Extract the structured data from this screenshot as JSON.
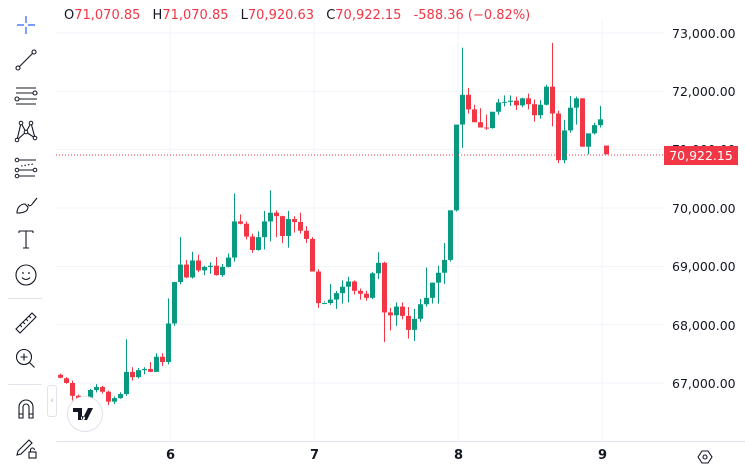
{
  "legend": {
    "open_label": "O",
    "open": "71,070.85",
    "high_label": "H",
    "high": "71,070.85",
    "low_label": "L",
    "low": "70,920.63",
    "close_label": "C",
    "close": "70,922.15",
    "change": "-588.36 (−0.82%)"
  },
  "toolbar": {
    "items": [
      {
        "name": "crosshair-tool",
        "icon": "crosshair-icon"
      },
      {
        "name": "trend-line-tool",
        "icon": "trend-line-icon"
      },
      {
        "name": "horizontal-lines-tool",
        "icon": "horizontal-lines-icon"
      },
      {
        "name": "pattern-tool",
        "icon": "xabcd-pattern-icon"
      },
      {
        "name": "fib-tool",
        "icon": "fib-retracement-icon"
      },
      {
        "name": "brush-tool",
        "icon": "brush-icon"
      },
      {
        "name": "text-tool",
        "icon": "text-icon"
      },
      {
        "name": "emoji-tool",
        "icon": "smiley-icon"
      },
      {
        "name": "measure-tool",
        "icon": "ruler-icon"
      },
      {
        "name": "zoom-tool",
        "icon": "zoom-in-icon"
      },
      {
        "name": "magnet-tool",
        "icon": "magnet-icon"
      },
      {
        "name": "lock-drawings-tool",
        "icon": "pencil-lock-icon"
      }
    ]
  },
  "price_axis": {
    "labels": [
      "73,000.00",
      "72,000.00",
      "71,000.00",
      "70,000.00",
      "69,000.00",
      "68,000.00",
      "67,000.00"
    ],
    "last_price": "70,922.15"
  },
  "time_axis": {
    "labels": [
      "6",
      "7",
      "8",
      "9"
    ]
  },
  "colors": {
    "up": "#089981",
    "down": "#f23645",
    "grid": "#f0f3fa",
    "axis_text": "#131722"
  },
  "chart_data": {
    "type": "candlestick",
    "title": "",
    "xlabel": "",
    "ylabel": "",
    "ylim": [
      66000,
      73200
    ],
    "x_ticks": [
      "6",
      "7",
      "8",
      "9"
    ],
    "y_ticks": [
      67000,
      68000,
      69000,
      70000,
      71000,
      72000,
      73000
    ],
    "grid": true,
    "last_price": 70922.15,
    "ohlc_last": {
      "open": 71070.85,
      "high": 71070.85,
      "low": 70920.63,
      "close": 70922.15
    },
    "candles_ohlc": [
      [
        67140,
        67160,
        67080,
        67090
      ],
      [
        67080,
        67100,
        66990,
        67000
      ],
      [
        67000,
        67040,
        66700,
        66780
      ],
      [
        66780,
        66800,
        66620,
        66680
      ],
      [
        66680,
        66760,
        66640,
        66740
      ],
      [
        66740,
        66900,
        66740,
        66880
      ],
      [
        66880,
        66980,
        66840,
        66930
      ],
      [
        66930,
        66950,
        66820,
        66850
      ],
      [
        66850,
        66870,
        66620,
        66680
      ],
      [
        66680,
        66770,
        66640,
        66740
      ],
      [
        66740,
        66840,
        66730,
        66810
      ],
      [
        66810,
        67750,
        66780,
        67190
      ],
      [
        67190,
        67270,
        67040,
        67100
      ],
      [
        67100,
        67260,
        67080,
        67220
      ],
      [
        67220,
        67270,
        67150,
        67240
      ],
      [
        67240,
        67360,
        67190,
        67190
      ],
      [
        67190,
        67510,
        67190,
        67450
      ],
      [
        67450,
        67510,
        67290,
        67360
      ],
      [
        67360,
        68450,
        67320,
        68020
      ],
      [
        68020,
        68730,
        67980,
        68730
      ],
      [
        68730,
        69500,
        68690,
        69030
      ],
      [
        69030,
        69110,
        68800,
        68810
      ],
      [
        68810,
        69250,
        68790,
        69100
      ],
      [
        69100,
        69200,
        68900,
        68930
      ],
      [
        68930,
        69010,
        68850,
        68990
      ],
      [
        68990,
        69070,
        68870,
        69010
      ],
      [
        69010,
        69160,
        68840,
        68850
      ],
      [
        68850,
        69040,
        68820,
        68990
      ],
      [
        68990,
        69220,
        68980,
        69150
      ],
      [
        69150,
        70250,
        69080,
        69770
      ],
      [
        69770,
        69890,
        69720,
        69730
      ],
      [
        69730,
        69770,
        69460,
        69510
      ],
      [
        69510,
        69560,
        69230,
        69280
      ],
      [
        69280,
        69600,
        69270,
        69500
      ],
      [
        69500,
        69950,
        69290,
        69770
      ],
      [
        69770,
        70300,
        69430,
        69920
      ],
      [
        69920,
        69960,
        69500,
        69860
      ],
      [
        69860,
        69870,
        69400,
        69520
      ],
      [
        69520,
        69950,
        69320,
        69810
      ],
      [
        69810,
        69860,
        69580,
        69760
      ],
      [
        69760,
        69920,
        69560,
        69610
      ],
      [
        69610,
        69690,
        69400,
        69470
      ],
      [
        69470,
        69500,
        68940,
        68910
      ],
      [
        68910,
        68950,
        68290,
        68370
      ],
      [
        68370,
        68400,
        68380,
        68370
      ],
      [
        68370,
        68700,
        68340,
        68430
      ],
      [
        68430,
        68580,
        68270,
        68540
      ],
      [
        68540,
        68760,
        68360,
        68650
      ],
      [
        68650,
        68820,
        68380,
        68740
      ],
      [
        68740,
        68760,
        68520,
        68580
      ],
      [
        68580,
        68620,
        68430,
        68530
      ],
      [
        68530,
        68580,
        68410,
        68460
      ],
      [
        68460,
        68900,
        68440,
        68880
      ],
      [
        68880,
        69240,
        68780,
        69060
      ],
      [
        69060,
        69080,
        67700,
        68210
      ],
      [
        68210,
        68290,
        67900,
        68160
      ],
      [
        68160,
        68380,
        67980,
        68310
      ],
      [
        68310,
        68380,
        68090,
        68150
      ],
      [
        68150,
        68300,
        67760,
        67910
      ],
      [
        67910,
        68270,
        67720,
        68100
      ],
      [
        68100,
        68440,
        68050,
        68350
      ],
      [
        68350,
        68980,
        68310,
        68460
      ],
      [
        68460,
        68720,
        68360,
        68720
      ],
      [
        68720,
        69010,
        68360,
        68890
      ],
      [
        68890,
        69400,
        68700,
        69110
      ],
      [
        69110,
        69960,
        69080,
        69960
      ],
      [
        69960,
        71100,
        69940,
        71430
      ],
      [
        71430,
        72750,
        71030,
        71940
      ],
      [
        71940,
        72060,
        71620,
        71690
      ],
      [
        71690,
        71770,
        71520,
        71470
      ],
      [
        71470,
        71710,
        71420,
        71380
      ],
      [
        71380,
        71600,
        71340,
        71370
      ],
      [
        71370,
        71640,
        71360,
        71650
      ],
      [
        71650,
        71870,
        71600,
        71810
      ],
      [
        71810,
        71930,
        71740,
        71820
      ],
      [
        71820,
        71930,
        71750,
        71840
      ],
      [
        71840,
        71910,
        71680,
        71760
      ],
      [
        71760,
        71890,
        71730,
        71880
      ],
      [
        71880,
        71960,
        71690,
        71780
      ],
      [
        71780,
        71860,
        71480,
        71590
      ],
      [
        71590,
        71850,
        71530,
        71770
      ],
      [
        71770,
        72110,
        71760,
        72080
      ],
      [
        72080,
        72830,
        71400,
        71620
      ],
      [
        71620,
        71670,
        70770,
        70820
      ],
      [
        70820,
        71510,
        70770,
        71330
      ],
      [
        71330,
        71920,
        71290,
        71720
      ],
      [
        71720,
        71910,
        71430,
        71880
      ],
      [
        71880,
        71880,
        71080,
        71050
      ],
      [
        71050,
        71120,
        70920,
        71280
      ],
      [
        71280,
        71460,
        71260,
        71420
      ],
      [
        71420,
        71750,
        71380,
        71520
      ],
      [
        71071,
        71071,
        70921,
        70922
      ]
    ]
  }
}
